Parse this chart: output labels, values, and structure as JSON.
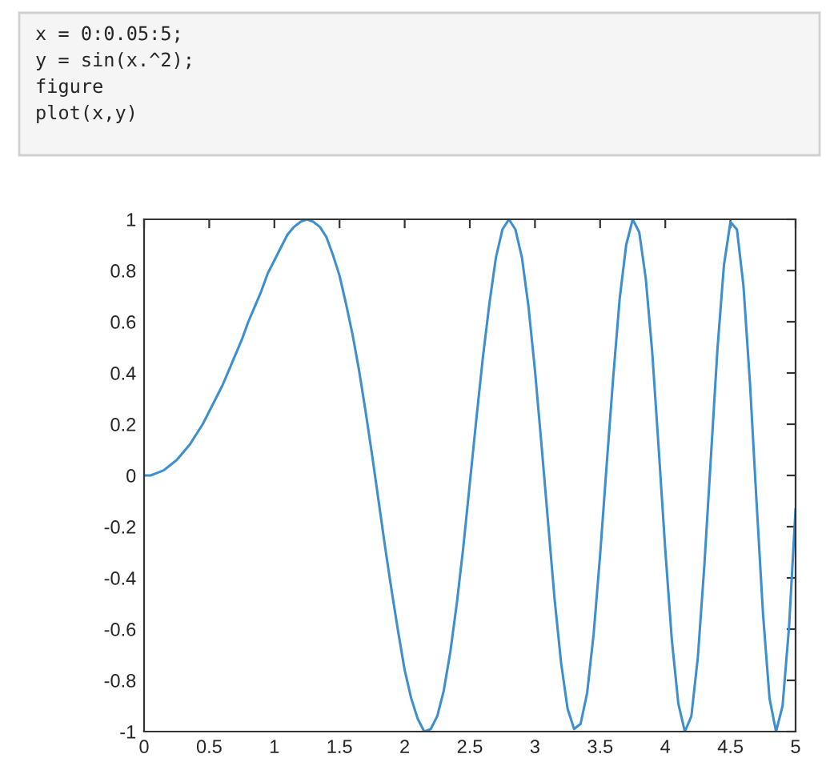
{
  "chart_data": {
    "type": "line",
    "annotations": [
      "x = 0:0.05:5;\ny = sin(x.^2);\nfigure\nplot(x,y)"
    ],
    "x": [
      0,
      0.05,
      0.1,
      0.15,
      0.2,
      0.25,
      0.3,
      0.35,
      0.4,
      0.45,
      0.5,
      0.55,
      0.6,
      0.65,
      0.7,
      0.75,
      0.8,
      0.85,
      0.9,
      0.95,
      1,
      1.05,
      1.1,
      1.15,
      1.2,
      1.25,
      1.3,
      1.35,
      1.4,
      1.45,
      1.5,
      1.55,
      1.6,
      1.65,
      1.7,
      1.75,
      1.8,
      1.85,
      1.9,
      1.95,
      2,
      2.05,
      2.1,
      2.15,
      2.2,
      2.25,
      2.3,
      2.35,
      2.4,
      2.45,
      2.5,
      2.55,
      2.6,
      2.65,
      2.7,
      2.75,
      2.8,
      2.85,
      2.9,
      2.95,
      3,
      3.05,
      3.1,
      3.15,
      3.2,
      3.25,
      3.3,
      3.35,
      3.4,
      3.45,
      3.5,
      3.55,
      3.6,
      3.65,
      3.7,
      3.75,
      3.8,
      3.85,
      3.9,
      3.95,
      4,
      4.05,
      4.1,
      4.15,
      4.2,
      4.25,
      4.3,
      4.35,
      4.4,
      4.45,
      4.5,
      4.55,
      4.6,
      4.65,
      4.7,
      4.75,
      4.8,
      4.85,
      4.9,
      4.95,
      5
    ],
    "series": [
      {
        "color": "#3d8fce",
        "values": [
          0,
          0,
          0.01,
          0.02,
          0.04,
          0.06,
          0.09,
          0.12,
          0.16,
          0.2,
          0.25,
          0.3,
          0.35,
          0.41,
          0.47,
          0.53,
          0.6,
          0.66,
          0.72,
          0.79,
          0.84,
          0.89,
          0.94,
          0.97,
          0.99,
          1,
          0.99,
          0.97,
          0.93,
          0.86,
          0.78,
          0.67,
          0.55,
          0.41,
          0.25,
          0.08,
          -0.1,
          -0.28,
          -0.45,
          -0.61,
          -0.76,
          -0.87,
          -0.95,
          -1,
          -0.99,
          -0.94,
          -0.84,
          -0.69,
          -0.5,
          -0.28,
          -0.03,
          0.22,
          0.46,
          0.67,
          0.85,
          0.96,
          1,
          0.96,
          0.85,
          0.66,
          0.41,
          0.12,
          -0.18,
          -0.48,
          -0.73,
          -0.91,
          -0.99,
          -0.97,
          -0.85,
          -0.62,
          -0.31,
          0.04,
          0.38,
          0.69,
          0.9,
          1,
          0.95,
          0.77,
          0.48,
          0.1,
          -0.29,
          -0.64,
          -0.89,
          -1,
          -0.94,
          -0.71,
          -0.35,
          0.07,
          0.49,
          0.82,
          0.99,
          0.96,
          0.74,
          0.36,
          -0.1,
          -0.54,
          -0.87,
          -1,
          -0.9,
          -0.59,
          -0.13
        ]
      }
    ],
    "xlim": [
      0,
      5
    ],
    "ylim": [
      -1,
      1
    ],
    "xticks": [
      0,
      0.5,
      1,
      1.5,
      2,
      2.5,
      3,
      3.5,
      4,
      4.5,
      5
    ],
    "yticks": [
      {
        "value": -1,
        "label": "-1"
      },
      {
        "value": -0.8,
        "label": "-0.8"
      },
      {
        "value": -0.6,
        "label": "-0.6"
      },
      {
        "value": -0.4,
        "label": "-0.4"
      },
      {
        "value": -0.2,
        "label": "-0.2"
      },
      0,
      0.2,
      0.4,
      0.6,
      0.8,
      1
    ],
    "grid": false,
    "legend": false,
    "marker": "none",
    "line_style": "solid"
  }
}
